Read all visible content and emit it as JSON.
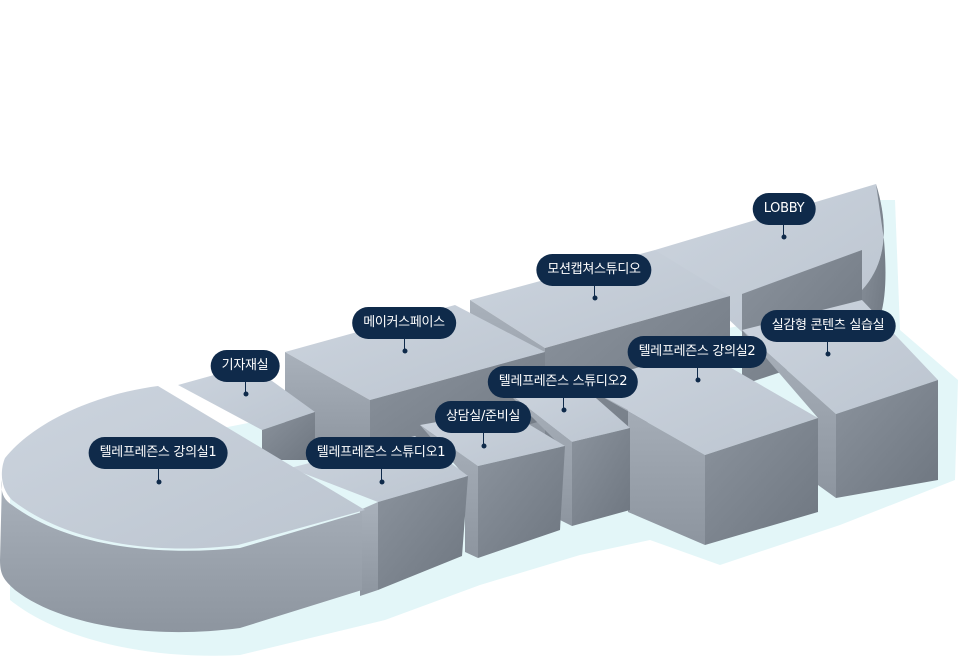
{
  "rooms": {
    "lobby": {
      "label": "LOBBY"
    },
    "motion_capture": {
      "label": "모션캡쳐스튜디오"
    },
    "realistic_content": {
      "label": "실감형 콘텐츠 실습실"
    },
    "lecture2": {
      "label": "텔레프레즌스 강의실2"
    },
    "makerspace": {
      "label": "메이커스페이스"
    },
    "studio2": {
      "label": "텔레프레즌스 스튜디오2"
    },
    "press_room": {
      "label": "기자재실"
    },
    "counseling": {
      "label": "상담실/준비실"
    },
    "studio1": {
      "label": "텔레프레즌스 스튜디오1"
    },
    "lecture1": {
      "label": "텔레프레즌스 강의실1"
    }
  },
  "colors": {
    "top": "#c7d0db",
    "side_light": "#a3abb5",
    "side_dark": "#7b838d",
    "shadow": "#e3f6f8",
    "label_bg": "#0f2a4a",
    "label_text": "#ffffff"
  }
}
